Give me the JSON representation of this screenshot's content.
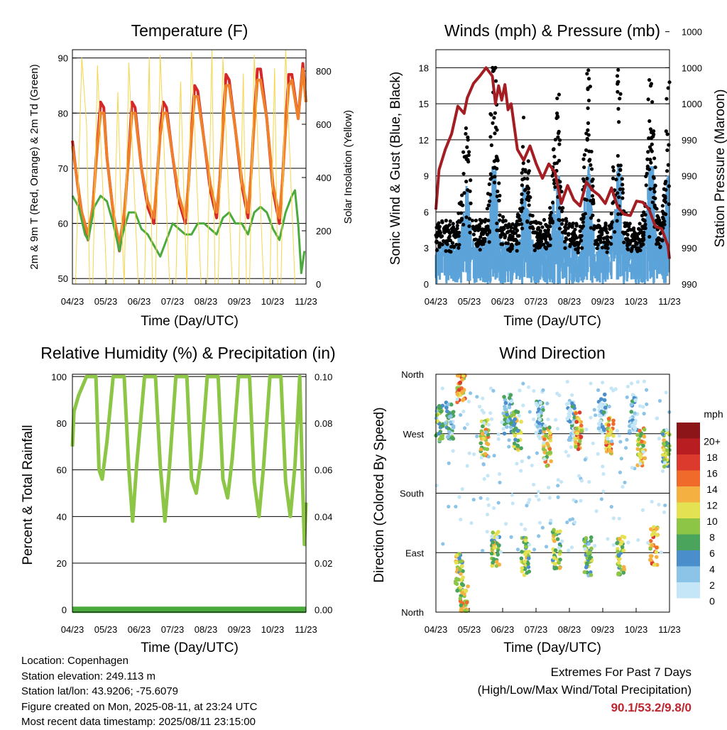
{
  "chart_data": [
    {
      "type": "line",
      "title": "Temperature (F)",
      "xlabel": "Time (Day/UTC)",
      "ylabel": "2m & 9m T (Red, Orange) & 2m Td (Green)",
      "y2label": "Solar Insolation (Yellow)",
      "x_ticks": [
        "04/23",
        "05/23",
        "06/23",
        "07/23",
        "08/23",
        "09/23",
        "10/23",
        "11/23"
      ],
      "xlim": [
        0,
        7.45
      ],
      "ylim": [
        49,
        91.5
      ],
      "y_ticks": [
        50,
        60,
        70,
        80,
        90
      ],
      "y2lim": [
        0,
        880
      ],
      "y2_ticks": [
        0,
        200,
        400,
        600,
        800
      ],
      "grid": true,
      "series": [
        {
          "name": "2m T",
          "color": "#d62728",
          "axis": "left",
          "x": [
            0,
            0.1,
            0.3,
            0.5,
            0.65,
            0.8,
            0.9,
            1.0,
            1.1,
            1.3,
            1.5,
            1.65,
            1.8,
            1.9,
            2.0,
            2.2,
            2.4,
            2.6,
            2.7,
            2.8,
            2.9,
            3.0,
            3.2,
            3.4,
            3.6,
            3.7,
            3.8,
            3.9,
            4.0,
            4.2,
            4.4,
            4.6,
            4.7,
            4.8,
            4.9,
            5.0,
            5.2,
            5.4,
            5.6,
            5.7,
            5.8,
            5.9,
            6.0,
            6.2,
            6.4,
            6.6,
            6.7,
            6.8,
            6.9,
            7.0,
            7.2,
            7.35,
            7.45
          ],
          "y": [
            75,
            70,
            61,
            57,
            63,
            75,
            82,
            81,
            72,
            62,
            55,
            61,
            73,
            82,
            81,
            70,
            63,
            60,
            68,
            77,
            82,
            81,
            72,
            64,
            60,
            67,
            77,
            85,
            84,
            75,
            66,
            61,
            68,
            78,
            87,
            86,
            77,
            67,
            61,
            69,
            79,
            88,
            88,
            79,
            66,
            60,
            68,
            78,
            87,
            87,
            79,
            89,
            82
          ]
        },
        {
          "name": "9m T",
          "color": "#f07f2c",
          "axis": "left",
          "x": [
            0,
            0.1,
            0.3,
            0.5,
            0.65,
            0.8,
            0.9,
            1.0,
            1.1,
            1.3,
            1.5,
            1.65,
            1.8,
            1.9,
            2.0,
            2.2,
            2.4,
            2.6,
            2.7,
            2.8,
            2.9,
            3.0,
            3.2,
            3.4,
            3.6,
            3.7,
            3.8,
            3.9,
            4.0,
            4.2,
            4.4,
            4.6,
            4.7,
            4.8,
            4.9,
            5.0,
            5.2,
            5.4,
            5.6,
            5.7,
            5.8,
            5.9,
            6.0,
            6.2,
            6.4,
            6.6,
            6.7,
            6.8,
            6.9,
            7.0,
            7.2,
            7.35,
            7.45
          ],
          "y": [
            74,
            70,
            62,
            58,
            63,
            74,
            80,
            80,
            72,
            62,
            56,
            62,
            72,
            80,
            80,
            70,
            64,
            61,
            68,
            76,
            80,
            80,
            72,
            65,
            61,
            67,
            76,
            83,
            83,
            75,
            67,
            62,
            68,
            77,
            85,
            85,
            77,
            68,
            62,
            69,
            78,
            86,
            86,
            79,
            67,
            61,
            68,
            77,
            85,
            86,
            79,
            88,
            82
          ]
        },
        {
          "name": "2m Td",
          "color": "#4aaa3c",
          "axis": "left",
          "x": [
            0,
            0.2,
            0.4,
            0.5,
            0.7,
            0.9,
            1.1,
            1.3,
            1.5,
            1.6,
            1.8,
            2.0,
            2.2,
            2.4,
            2.6,
            2.8,
            3.0,
            3.2,
            3.4,
            3.6,
            3.8,
            4.0,
            4.2,
            4.4,
            4.6,
            4.8,
            5.0,
            5.2,
            5.4,
            5.6,
            5.8,
            6.0,
            6.2,
            6.4,
            6.6,
            6.8,
            7.0,
            7.1,
            7.2,
            7.3,
            7.4
          ],
          "y": [
            65,
            63,
            58,
            57,
            63,
            65,
            64,
            60,
            55,
            58,
            62,
            62,
            59,
            58,
            56,
            54,
            57,
            60,
            59,
            58,
            58,
            60,
            60,
            59,
            58,
            61,
            62,
            60,
            60,
            58,
            62,
            63,
            62,
            59,
            57,
            62,
            65,
            66,
            60,
            51,
            55
          ]
        },
        {
          "name": "Solar Insolation",
          "color": "#f6d54a",
          "axis": "right",
          "x": [
            0,
            0.1,
            0.3,
            0.45,
            0.55,
            0.65,
            0.8,
            1.1,
            1.3,
            1.45,
            1.55,
            1.65,
            1.8,
            2.1,
            2.3,
            2.45,
            2.55,
            2.65,
            2.8,
            3.1,
            3.3,
            3.45,
            3.55,
            3.65,
            3.8,
            4.1,
            4.3,
            4.45,
            4.55,
            4.65,
            4.8,
            5.1,
            5.3,
            5.45,
            5.55,
            5.65,
            5.8,
            6.1,
            6.3,
            6.45,
            6.55,
            6.65,
            6.8,
            7.1,
            7.3,
            7.45
          ],
          "y": [
            0,
            0,
            850,
            600,
            0,
            0,
            820,
            0,
            0,
            720,
            300,
            0,
            830,
            0,
            0,
            850,
            0,
            0,
            860,
            0,
            0,
            760,
            350,
            0,
            870,
            0,
            0,
            880,
            0,
            0,
            850,
            0,
            0,
            790,
            0,
            0,
            860,
            0,
            0,
            810,
            0,
            0,
            880,
            0,
            0,
            0
          ]
        }
      ]
    },
    {
      "type": "scatter",
      "title": "Winds (mph) & Pressure (mb)",
      "xlabel": "Time (Day/UTC)",
      "ylabel": "Sonic Wind & Gust (Blue, Black)",
      "y2label": "Station Pressure (Maroon)",
      "x_ticks": [
        "04/23",
        "05/23",
        "06/23",
        "07/23",
        "08/23",
        "09/23",
        "10/23",
        "11/23"
      ],
      "xlim": [
        0,
        7.45
      ],
      "ylim": [
        0,
        19.5
      ],
      "y_ticks": [
        0,
        3,
        6,
        9,
        12,
        15,
        18
      ],
      "y2_tick_labels": [
        "990",
        "990",
        "990",
        "990",
        "990",
        "1000",
        "1000",
        "1000"
      ],
      "grid": true,
      "gust_peaks": [
        {
          "x": 0.95,
          "y": 12.5
        },
        {
          "x": 1.85,
          "y": 17.8
        },
        {
          "x": 2.85,
          "y": 9.5
        },
        {
          "x": 3.85,
          "y": 13.8
        },
        {
          "x": 4.85,
          "y": 16.3
        },
        {
          "x": 5.8,
          "y": 16.8
        },
        {
          "x": 6.85,
          "y": 16.5
        },
        {
          "x": 7.45,
          "y": 16.8
        }
      ],
      "wind_peaks": [
        {
          "x": 0.95,
          "y": 7.0
        },
        {
          "x": 1.85,
          "y": 9.5
        },
        {
          "x": 2.85,
          "y": 6.8
        },
        {
          "x": 3.85,
          "y": 8.5
        },
        {
          "x": 4.85,
          "y": 8.7
        },
        {
          "x": 5.8,
          "y": 9.3
        },
        {
          "x": 6.85,
          "y": 10.0
        },
        {
          "x": 7.45,
          "y": 8.8
        }
      ],
      "pressure": {
        "name": "Station Pressure",
        "color": "#a31d23",
        "x": [
          0,
          0.1,
          0.3,
          0.5,
          0.7,
          0.9,
          1.0,
          1.2,
          1.4,
          1.6,
          1.8,
          1.9,
          2.0,
          2.1,
          2.2,
          2.3,
          2.4,
          2.6,
          2.8,
          3.0,
          3.2,
          3.4,
          3.6,
          3.8,
          4.0,
          4.2,
          4.4,
          4.6,
          4.8,
          5.0,
          5.2,
          5.4,
          5.6,
          5.8,
          6.0,
          6.2,
          6.4,
          6.6,
          6.8,
          7.0,
          7.2,
          7.4,
          7.45
        ],
        "y": [
          6.2,
          9.5,
          11.2,
          12.5,
          14.8,
          14.2,
          15.5,
          16.7,
          17.3,
          18.0,
          17.3,
          15.0,
          16.5,
          15.3,
          16.6,
          14.5,
          15.0,
          11.2,
          10.3,
          11.5,
          10.0,
          8.8,
          10.0,
          9.3,
          6.7,
          8.2,
          7.0,
          6.5,
          8.5,
          7.8,
          7.4,
          6.7,
          8.0,
          6.4,
          5.8,
          5.7,
          6.9,
          6.8,
          6.2,
          4.8,
          4.6,
          3.2,
          2.1
        ]
      }
    },
    {
      "type": "line",
      "title": "Relative Humidity (%) & Precipitation (in)",
      "xlabel": "Time (Day/UTC)",
      "ylabel": "Percent & Total Rainfall",
      "x_ticks": [
        "04/23",
        "05/23",
        "06/23",
        "07/23",
        "08/23",
        "09/23",
        "10/23",
        "11/23"
      ],
      "xlim": [
        0,
        7.45
      ],
      "ylim": [
        -1,
        101
      ],
      "y_ticks": [
        0,
        20,
        40,
        60,
        80,
        100
      ],
      "y2_tick_labels": [
        "0.00",
        "0.02",
        "0.04",
        "0.06",
        "0.08",
        "0.10"
      ],
      "grid": true,
      "series": [
        {
          "name": "Relative Humidity",
          "color": "#8dc646",
          "x": [
            0,
            0.05,
            0.2,
            0.45,
            0.6,
            0.75,
            0.85,
            0.95,
            1.1,
            1.3,
            1.5,
            1.65,
            1.8,
            1.92,
            2.05,
            2.3,
            2.45,
            2.65,
            2.8,
            2.95,
            3.1,
            3.3,
            3.45,
            3.65,
            3.8,
            3.95,
            4.1,
            4.3,
            4.45,
            4.65,
            4.8,
            4.95,
            5.1,
            5.3,
            5.45,
            5.65,
            5.8,
            5.95,
            6.1,
            6.3,
            6.45,
            6.65,
            6.8,
            6.95,
            7.1,
            7.25,
            7.35,
            7.4,
            7.45
          ],
          "y": [
            70,
            85,
            92,
            100,
            100,
            100,
            60,
            56,
            72,
            100,
            100,
            100,
            60,
            38,
            62,
            100,
            100,
            100,
            62,
            38,
            62,
            100,
            100,
            100,
            56,
            50,
            65,
            100,
            100,
            100,
            56,
            48,
            65,
            100,
            100,
            100,
            55,
            40,
            62,
            100,
            100,
            100,
            55,
            40,
            62,
            100,
            50,
            28,
            46
          ]
        },
        {
          "name": "Total Rainfall",
          "color": "#4aaa3c",
          "x": [
            0,
            7.45
          ],
          "y": [
            0.0,
            0.0
          ]
        }
      ]
    },
    {
      "type": "scatter",
      "title": "Wind Direction",
      "xlabel": "Time (Day/UTC)",
      "ylabel": "Direction (Colored By Speed)",
      "x_ticks": [
        "04/23",
        "05/23",
        "06/23",
        "07/23",
        "08/23",
        "09/23",
        "10/23",
        "11/23"
      ],
      "xlim": [
        0,
        7.45
      ],
      "ylim": [
        0,
        360
      ],
      "y_tick_labels": [
        "North",
        "East",
        "South",
        "West",
        "North"
      ],
      "grid": true,
      "legend": {
        "title": "mph",
        "placement": "right",
        "labels": [
          "0",
          "2",
          "4",
          "6",
          "8",
          "10",
          "12",
          "14",
          "16",
          "18",
          "20+"
        ],
        "colors": [
          "#c5e6f7",
          "#8cc4e8",
          "#4a8fcb",
          "#4aa45c",
          "#8dc646",
          "#e4e152",
          "#f5b042",
          "#ef6a2b",
          "#dc3a2c",
          "#b81d22",
          "#8b1519"
        ]
      },
      "clusters": [
        {
          "x": 0.1,
          "dir": 285,
          "speed": 3
        },
        {
          "x": 0.45,
          "dir": 290,
          "speed": 2
        },
        {
          "x": 0.8,
          "dir": 345,
          "speed": 6
        },
        {
          "x": 0.75,
          "dir": 60,
          "speed": 4
        },
        {
          "x": 0.9,
          "dir": 15,
          "speed": 5
        },
        {
          "x": 1.55,
          "dir": 265,
          "speed": 5
        },
        {
          "x": 1.9,
          "dir": 95,
          "speed": 4
        },
        {
          "x": 2.3,
          "dir": 300,
          "speed": 2
        },
        {
          "x": 2.6,
          "dir": 275,
          "speed": 4
        },
        {
          "x": 2.85,
          "dir": 85,
          "speed": 4
        },
        {
          "x": 3.3,
          "dir": 290,
          "speed": 1
        },
        {
          "x": 3.55,
          "dir": 250,
          "speed": 5
        },
        {
          "x": 3.85,
          "dir": 95,
          "speed": 4
        },
        {
          "x": 4.3,
          "dir": 290,
          "speed": 1
        },
        {
          "x": 4.55,
          "dir": 275,
          "speed": 6
        },
        {
          "x": 4.85,
          "dir": 85,
          "speed": 3
        },
        {
          "x": 5.3,
          "dir": 300,
          "speed": 1
        },
        {
          "x": 5.55,
          "dir": 270,
          "speed": 6
        },
        {
          "x": 5.9,
          "dir": 85,
          "speed": 4
        },
        {
          "x": 6.3,
          "dir": 300,
          "speed": 1
        },
        {
          "x": 6.55,
          "dir": 250,
          "speed": 5
        },
        {
          "x": 6.95,
          "dir": 100,
          "speed": 6
        },
        {
          "x": 7.35,
          "dir": 250,
          "speed": 4
        }
      ]
    }
  ],
  "info": {
    "location": "Location: Copenhagen",
    "elevation": "Station elevation: 249.113 m",
    "latlon": "Station lat/lon: 43.9206; -75.6079",
    "created": "Figure created on Mon, 2025-08-11, at 23:24 UTC",
    "recent": "Most recent data timestamp: 2025/08/11 23:15:00"
  },
  "extremes": {
    "line1": "Extremes For Past 7 Days",
    "line2": "(High/Low/Max Wind/Total Precipitation)",
    "value": "90.1/53.2/9.8/0"
  }
}
